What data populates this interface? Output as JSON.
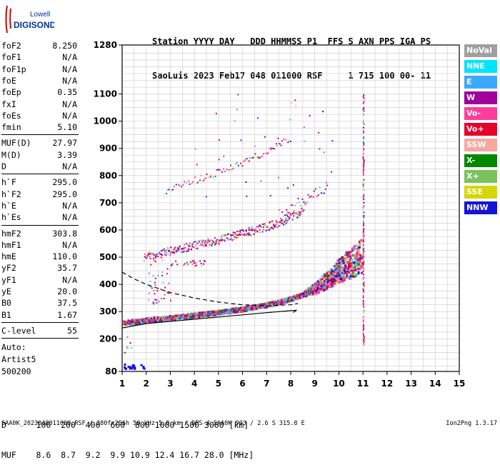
{
  "logo": {
    "line1": "Lowell",
    "line2": "DIGISONDE"
  },
  "header": {
    "line1": "Station YYYY DAY   DDD HHMMSS P1  FFS S AXN PPS IGA PS",
    "line2": "SaoLuis 2023 Feb17 048 011000 RSF     1 715 100 00- 11"
  },
  "params": [
    {
      "name": "foF2",
      "value": "8.250"
    },
    {
      "name": "foF1",
      "value": "N/A"
    },
    {
      "name": "foF1p",
      "value": "N/A"
    },
    {
      "name": "foE",
      "value": "N/A"
    },
    {
      "name": "foEp",
      "value": "0.35"
    },
    {
      "name": "fxI",
      "value": "N/A"
    },
    {
      "name": "foEs",
      "value": "N/A"
    },
    {
      "name": "fmin",
      "value": "5.10"
    },
    {
      "name": "MUF(D)",
      "value": "27.97"
    },
    {
      "name": "M(D)",
      "value": "3.39"
    },
    {
      "name": "D",
      "value": "N/A"
    },
    {
      "name": "h`F",
      "value": "295.0"
    },
    {
      "name": "h`F2",
      "value": "295.0"
    },
    {
      "name": "h`E",
      "value": "N/A"
    },
    {
      "name": "h`Es",
      "value": "N/A"
    },
    {
      "name": "hmF2",
      "value": "303.8"
    },
    {
      "name": "hmF1",
      "value": "N/A"
    },
    {
      "name": "hmE",
      "value": "110.0"
    },
    {
      "name": "yF2",
      "value": "35.7"
    },
    {
      "name": "yF1",
      "value": "N/A"
    },
    {
      "name": "yE",
      "value": "20.0"
    },
    {
      "name": "B0",
      "value": "37.5"
    },
    {
      "name": "B1",
      "value": "1.67"
    },
    {
      "name": "C-level",
      "value": "55"
    }
  ],
  "autoscaling": {
    "line1": "Auto:",
    "line2": "Artist5",
    "line3": "500200"
  },
  "legend": [
    {
      "label": "NoVal",
      "color": "#a0a0a0"
    },
    {
      "label": "NNE",
      "color": "#00e5ff"
    },
    {
      "label": "E",
      "color": "#3aa8ff"
    },
    {
      "label": "W",
      "color": "#a0009c"
    },
    {
      "label": "Vo-",
      "color": "#ff3d9e"
    },
    {
      "label": "Vo+",
      "color": "#e8002a"
    },
    {
      "label": "SSW",
      "color": "#f5a8a0"
    },
    {
      "label": "X-",
      "color": "#008800"
    },
    {
      "label": "X+",
      "color": "#7ac35a"
    },
    {
      "label": "SSE",
      "color": "#d6d60a"
    },
    {
      "label": "NNW",
      "color": "#1414d8"
    }
  ],
  "muf_table": {
    "distance_label": "D",
    "distances": [
      "100",
      "200",
      "400",
      "600",
      "800",
      "1000",
      "1500",
      "3000"
    ],
    "distance_unit": "[km]",
    "muf_label": "MUF",
    "mufs": [
      "8.6",
      "8.7",
      "9.2",
      "9.9",
      "10.9",
      "12.4",
      "16.7",
      "28.0"
    ],
    "muf_unit": "[MHz]"
  },
  "footer": "SAA0K_2023048011000.RSF / 280fx256h 50 kHz 5.0 km / DPS-4 SAA0K 903 / 2.6 S 315.8 E",
  "version": "Ion2Png 1.3.17",
  "chart_data": {
    "type": "scatter",
    "xlim": [
      1,
      15
    ],
    "ylim": [
      80,
      1280
    ],
    "x_ticks": [
      "1",
      "2",
      "3",
      "4",
      "5",
      "6",
      "7",
      "8",
      "9",
      "10",
      "11",
      "12",
      "13",
      "14",
      "15"
    ],
    "y_ticks": [
      {
        "value": 80,
        "label": "80"
      },
      {
        "value": 200,
        "label": "200"
      },
      {
        "value": 300,
        "label": "300"
      },
      {
        "value": 400,
        "label": "400"
      },
      {
        "value": 500,
        "label": "500"
      },
      {
        "value": 600,
        "label": "600"
      },
      {
        "value": 700,
        "label": "700"
      },
      {
        "value": 800,
        "label": "800"
      },
      {
        "value": 900,
        "label": "900"
      },
      {
        "value": 1000,
        "label": "1000"
      },
      {
        "value": 1100,
        "label": "1100"
      },
      {
        "value": 1280,
        "label": "1280"
      }
    ],
    "grid": true,
    "traces": [
      {
        "name": "F-trace O-mode",
        "x": [
          1.0,
          1.5,
          2.0,
          3.0,
          4.0,
          5.0,
          6.0,
          7.0,
          7.5,
          8.0,
          8.5,
          9.0,
          9.5,
          10.0,
          10.5,
          11.0
        ],
        "y": [
          262,
          266,
          272,
          280,
          290,
          300,
          312,
          328,
          338,
          350,
          366,
          390,
          420,
          455,
          485,
          505
        ]
      },
      {
        "name": "F-trace X-mode",
        "x": [
          9.0,
          9.5,
          10.0,
          10.5,
          11.0
        ],
        "y": [
          385,
          410,
          440,
          475,
          500
        ]
      },
      {
        "name": "2nd multiple",
        "x": [
          1.9,
          3.0,
          4.0,
          5.0,
          6.0,
          7.0,
          7.5,
          8.0,
          8.5
        ],
        "y": [
          500,
          525,
          545,
          565,
          590,
          615,
          630,
          650,
          675
        ]
      },
      {
        "name": "3rd multiple",
        "x": [
          2.8,
          4.0,
          5.0,
          6.0,
          7.0,
          8.0
        ],
        "y": [
          745,
          785,
          815,
          850,
          890,
          940
        ]
      },
      {
        "name": "Spread spike 11 MHz",
        "x": [
          11.0,
          11.0,
          11.0,
          11.0
        ],
        "y": [
          180,
          480,
          800,
          1090
        ]
      }
    ],
    "model_profile_dashed": {
      "x": [
        1.0,
        1.5,
        2.0,
        3.0,
        4.0,
        5.0,
        6.0,
        7.0,
        8.0,
        8.3
      ],
      "y": [
        445,
        420,
        400,
        370,
        350,
        335,
        325,
        322,
        325,
        330
      ]
    },
    "model_profile_solid": {
      "x": [
        1.0,
        2.0,
        3.0,
        4.0,
        5.0,
        6.0,
        7.0,
        7.8,
        8.25,
        8.1
      ],
      "y": [
        240,
        256,
        264,
        272,
        280,
        288,
        296,
        302,
        305,
        297
      ]
    },
    "low_cluster": {
      "x": [
        1.0,
        1.2,
        1.4,
        1.6,
        1.8
      ],
      "y": [
        95,
        96,
        98,
        100,
        110
      ]
    }
  }
}
